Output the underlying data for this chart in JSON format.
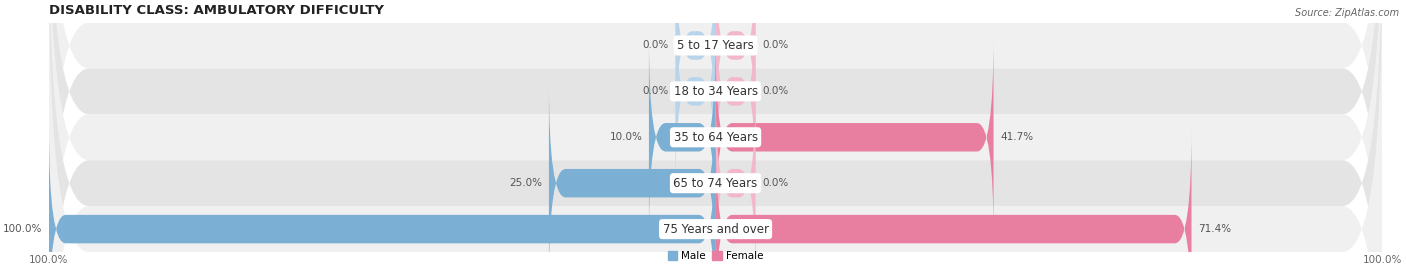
{
  "title": "DISABILITY CLASS: AMBULATORY DIFFICULTY",
  "source": "Source: ZipAtlas.com",
  "categories": [
    "5 to 17 Years",
    "18 to 34 Years",
    "35 to 64 Years",
    "65 to 74 Years",
    "75 Years and over"
  ],
  "male_values": [
    0.0,
    0.0,
    10.0,
    25.0,
    100.0
  ],
  "female_values": [
    0.0,
    0.0,
    41.7,
    0.0,
    71.4
  ],
  "male_color": "#7bafd4",
  "female_color": "#e87fa0",
  "male_zero_color": "#b8d4ea",
  "female_zero_color": "#f2b8ca",
  "bar_bg_color_odd": "#f0f0f0",
  "bar_bg_color_even": "#e4e4e4",
  "max_value": 100.0,
  "bar_height": 0.62,
  "zero_bar_width": 6.0,
  "figsize": [
    14.06,
    2.69
  ],
  "dpi": 100,
  "title_fontsize": 9.5,
  "label_fontsize": 7.5,
  "tick_fontsize": 7.5,
  "category_fontsize": 8.5,
  "bg_color": "#ffffff",
  "legend_square_size": 9
}
